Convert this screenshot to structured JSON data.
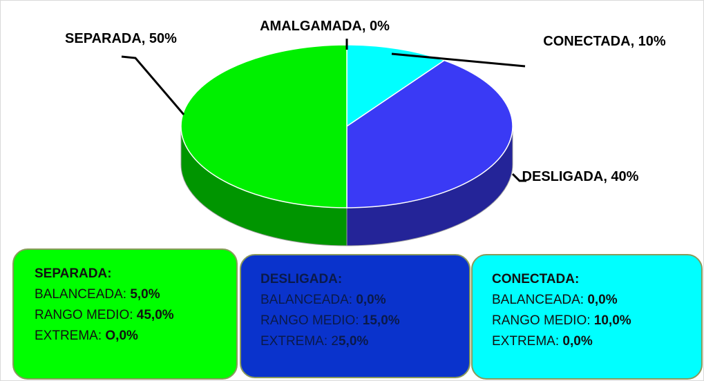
{
  "chart_data": {
    "type": "pie",
    "values": [
      0,
      10,
      40,
      50
    ],
    "value_labels": [
      "AMALGAMADA, 0%",
      "CONECTADA, 10%",
      "DESLIGADA, 40%",
      "SEPARADA, 50%"
    ],
    "colors": [
      "#ffc000",
      "#00ffff",
      "#3a3af5",
      "#00f000"
    ]
  },
  "boxes": [
    {
      "title": "SEPARADA:",
      "lines": [
        {
          "label": "BALANCEADA: ",
          "value": "5,0%"
        },
        {
          "label": "RANGO MEDIO: ",
          "value": "45,0%"
        },
        {
          "label": "EXTREMA: ",
          "value": "O,0%"
        }
      ]
    },
    {
      "title": "DESLIGADA:",
      "lines": [
        {
          "label": "BALANCEADA: ",
          "value": "0,0%"
        },
        {
          "label": "RANGO MEDIO: ",
          "value": "15,0%"
        },
        {
          "label": "EXTREMA: 2",
          "value": "5,0%"
        }
      ]
    },
    {
      "title": "CONECTADA:",
      "lines": [
        {
          "label": "BALANCEADA: ",
          "value": "0,0%"
        },
        {
          "label": "RANGO MEDIO: ",
          "value": "10,0%"
        },
        {
          "label": "EXTREMA: ",
          "value": "0,0%"
        }
      ]
    }
  ]
}
